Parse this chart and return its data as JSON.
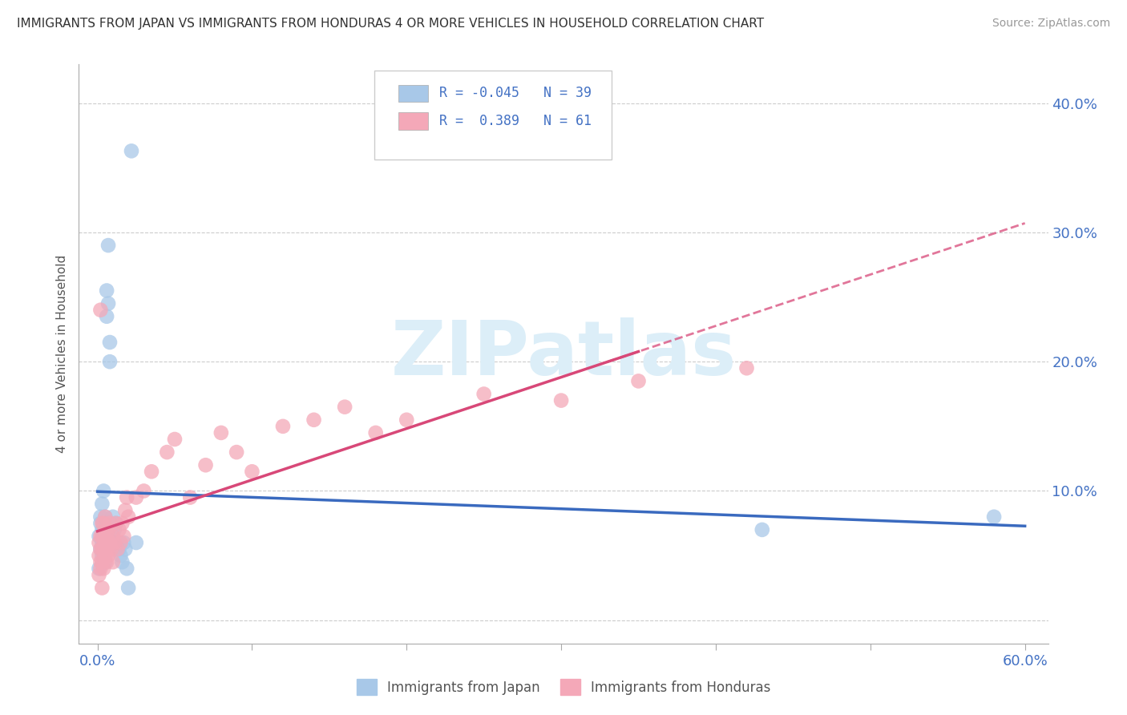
{
  "title": "IMMIGRANTS FROM JAPAN VS IMMIGRANTS FROM HONDURAS 4 OR MORE VEHICLES IN HOUSEHOLD CORRELATION CHART",
  "source": "Source: ZipAtlas.com",
  "ylabel": "4 or more Vehicles in Household",
  "R_japan": -0.045,
  "N_japan": 39,
  "R_honduras": 0.389,
  "N_honduras": 61,
  "color_japan": "#a8c8e8",
  "color_honduras": "#f4a8b8",
  "line_color_japan": "#3a6abf",
  "line_color_honduras": "#d84878",
  "watermark_color": "#dceef8",
  "xlim": [
    0.0,
    0.6
  ],
  "ylim": [
    0.0,
    0.42
  ],
  "yticks": [
    0.0,
    0.1,
    0.2,
    0.3,
    0.4
  ],
  "japan_x": [
    0.001,
    0.001,
    0.002,
    0.002,
    0.002,
    0.003,
    0.003,
    0.003,
    0.003,
    0.004,
    0.004,
    0.004,
    0.004,
    0.005,
    0.005,
    0.005,
    0.006,
    0.006,
    0.007,
    0.007,
    0.008,
    0.008,
    0.009,
    0.01,
    0.01,
    0.011,
    0.012,
    0.013,
    0.014,
    0.015,
    0.016,
    0.017,
    0.018,
    0.019,
    0.02,
    0.43,
    0.58,
    0.022,
    0.025
  ],
  "japan_y": [
    0.065,
    0.04,
    0.075,
    0.055,
    0.08,
    0.06,
    0.07,
    0.05,
    0.09,
    0.06,
    0.1,
    0.075,
    0.055,
    0.065,
    0.08,
    0.045,
    0.235,
    0.255,
    0.29,
    0.245,
    0.2,
    0.215,
    0.07,
    0.06,
    0.08,
    0.07,
    0.075,
    0.06,
    0.055,
    0.05,
    0.045,
    0.06,
    0.055,
    0.04,
    0.025,
    0.07,
    0.08,
    0.363,
    0.06
  ],
  "honduras_x": [
    0.001,
    0.001,
    0.001,
    0.002,
    0.002,
    0.002,
    0.002,
    0.003,
    0.003,
    0.003,
    0.003,
    0.004,
    0.004,
    0.004,
    0.004,
    0.005,
    0.005,
    0.005,
    0.005,
    0.006,
    0.006,
    0.006,
    0.007,
    0.007,
    0.007,
    0.008,
    0.008,
    0.009,
    0.01,
    0.01,
    0.011,
    0.012,
    0.013,
    0.014,
    0.015,
    0.016,
    0.017,
    0.018,
    0.019,
    0.02,
    0.025,
    0.03,
    0.035,
    0.045,
    0.05,
    0.06,
    0.07,
    0.08,
    0.09,
    0.1,
    0.12,
    0.14,
    0.16,
    0.18,
    0.2,
    0.25,
    0.3,
    0.35,
    0.42,
    0.002,
    0.003
  ],
  "honduras_y": [
    0.05,
    0.035,
    0.06,
    0.045,
    0.055,
    0.065,
    0.04,
    0.055,
    0.065,
    0.075,
    0.045,
    0.055,
    0.065,
    0.075,
    0.04,
    0.06,
    0.07,
    0.05,
    0.08,
    0.055,
    0.065,
    0.045,
    0.06,
    0.07,
    0.05,
    0.06,
    0.075,
    0.055,
    0.065,
    0.045,
    0.06,
    0.075,
    0.055,
    0.07,
    0.06,
    0.075,
    0.065,
    0.085,
    0.095,
    0.08,
    0.095,
    0.1,
    0.115,
    0.13,
    0.14,
    0.095,
    0.12,
    0.145,
    0.13,
    0.115,
    0.15,
    0.155,
    0.165,
    0.145,
    0.155,
    0.175,
    0.17,
    0.185,
    0.195,
    0.24,
    0.025
  ]
}
